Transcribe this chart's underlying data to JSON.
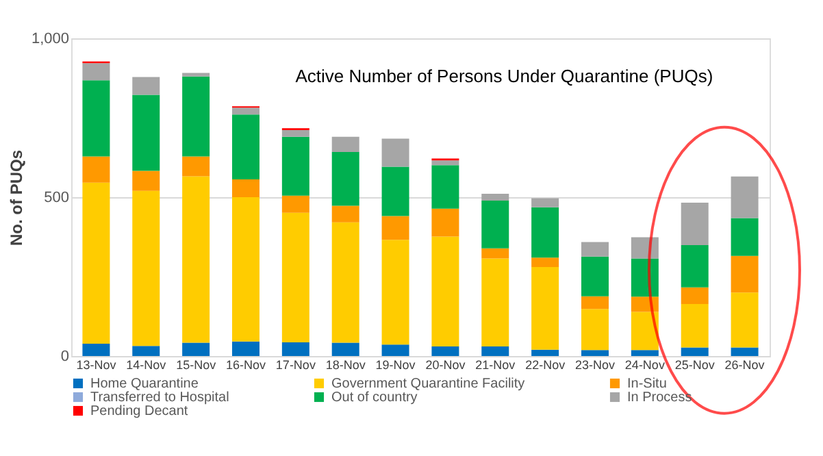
{
  "chart_data": {
    "type": "bar",
    "stacked": true,
    "title": "Active Number of Persons Under Quarantine (PUQs)",
    "ylabel": "No. of PUQs",
    "categories": [
      "13-Nov",
      "14-Nov",
      "15-Nov",
      "16-Nov",
      "17-Nov",
      "18-Nov",
      "19-Nov",
      "20-Nov",
      "21-Nov",
      "22-Nov",
      "23-Nov",
      "24-Nov",
      "25-Nov",
      "26-Nov"
    ],
    "series": [
      {
        "name": "Home  Quarantine",
        "color": "#0070c0",
        "values": [
          39,
          32,
          42,
          46,
          43,
          42,
          36,
          30,
          30,
          20,
          19,
          19,
          27,
          27
        ]
      },
      {
        "name": "Government Quarantine Facility",
        "color": "#ffcc00",
        "values": [
          507,
          488,
          524,
          454,
          408,
          379,
          330,
          346,
          277,
          260,
          129,
          120,
          137,
          173
        ]
      },
      {
        "name": "In-Situ",
        "color": "#ff9900",
        "values": [
          82,
          63,
          62,
          56,
          54,
          52,
          75,
          88,
          32,
          30,
          40,
          48,
          52,
          115
        ]
      },
      {
        "name": "Transferred to Hospital",
        "color": "#8eaadb",
        "values": [
          0,
          0,
          0,
          0,
          0,
          0,
          0,
          0,
          0,
          0,
          0,
          0,
          0,
          0
        ]
      },
      {
        "name": "Out of country",
        "color": "#00b050",
        "values": [
          240,
          239,
          252,
          204,
          185,
          169,
          155,
          137,
          150,
          158,
          125,
          120,
          133,
          119
        ]
      },
      {
        "name": "In Process",
        "color": "#a6a6a6",
        "values": [
          54,
          56,
          11,
          22,
          21,
          48,
          88,
          15,
          22,
          29,
          46,
          67,
          134,
          131
        ]
      },
      {
        "name": "Pending Decant",
        "color": "#ff0000",
        "values": [
          5,
          0,
          0,
          4,
          6,
          0,
          0,
          6,
          0,
          0,
          0,
          0,
          0,
          0
        ]
      }
    ],
    "ylim": [
      0,
      1000
    ],
    "yticks": [
      0,
      {
        "value": 500,
        "label": "500"
      },
      {
        "value": 1000,
        "label": "1,000"
      }
    ],
    "grid": "y",
    "legend": "bottom"
  }
}
